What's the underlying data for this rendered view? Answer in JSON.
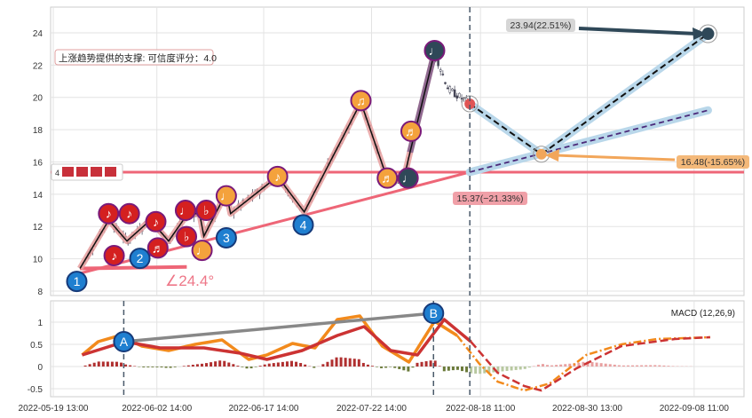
{
  "chart_data": [
    {
      "type": "line",
      "title": "",
      "panel": "price",
      "ylim": [
        7.8,
        25.6
      ],
      "xlim": [
        -0.3,
        64.7
      ],
      "yticks": [
        8,
        10,
        12,
        14,
        16,
        18,
        20,
        22,
        24
      ],
      "grid": true,
      "zigzag": [
        [
          2.5,
          9.4
        ],
        [
          5.2,
          12.4
        ],
        [
          6.9,
          11.1
        ],
        [
          9.1,
          12.4
        ],
        [
          10.8,
          11.1
        ],
        [
          12.6,
          12.8
        ],
        [
          13.7,
          12.8
        ],
        [
          14.1,
          11.4
        ],
        [
          16.2,
          14.1
        ],
        [
          16.6,
          12.8
        ],
        [
          21.0,
          15.1
        ],
        [
          23.5,
          12.9
        ],
        [
          28.8,
          19.7
        ],
        [
          31.3,
          14.9
        ],
        [
          32.8,
          14.9
        ],
        [
          33.4,
          16.6
        ],
        [
          35.7,
          22.8
        ],
        [
          37.0,
          20.5
        ],
        [
          39.0,
          19.6
        ]
      ],
      "markers": [
        {
          "label": "1",
          "u": 2.2,
          "p": 8.6,
          "color": "#1f7fd0"
        },
        {
          "label": "2",
          "u": 8.3,
          "p": 10.1,
          "color": "#1f7fd0"
        },
        {
          "label": "3",
          "u": 16.2,
          "p": 11.3,
          "color": "#1f7fd0"
        },
        {
          "label": "4",
          "u": 23.4,
          "p": 12.1,
          "color": "#1f7fd0"
        },
        {
          "label": "♪",
          "u": 5.7,
          "p": 10.2,
          "color": "#d42020"
        },
        {
          "label": "♬",
          "u": 9.6,
          "p": 10.6,
          "color": "#d42020"
        },
        {
          "label": "♪",
          "u": 5.2,
          "p": 12.8,
          "color": "#d42020"
        },
        {
          "label": "♪",
          "u": 7.1,
          "p": 12.8,
          "color": "#d42020"
        },
        {
          "label": "♪",
          "u": 9.6,
          "p": 12.3,
          "color": "#d42020"
        },
        {
          "label": "♭",
          "u": 12.6,
          "p": 11.3,
          "color": "#d42020"
        },
        {
          "label": "♩",
          "u": 12.9,
          "p": 13.0,
          "color": "#d42020"
        },
        {
          "label": "♭",
          "u": 13.8,
          "p": 13.0,
          "color": "#d42020"
        },
        {
          "label": "♩",
          "u": 13.8,
          "p": 10.6,
          "color": "#f4a23c"
        },
        {
          "label": "♩",
          "u": 16.2,
          "p": 13.9,
          "color": "#f4a23c"
        },
        {
          "label": "♪",
          "u": 21.0,
          "p": 15.1,
          "color": "#f4a23c"
        },
        {
          "label": "♫",
          "u": 28.8,
          "p": 19.8,
          "color": "#f4a23c"
        },
        {
          "label": "♬",
          "u": 31.4,
          "p": 15.0,
          "color": "#f4a23c"
        },
        {
          "label": "♬",
          "u": 33.5,
          "p": 17.9,
          "color": "#f4a23c"
        },
        {
          "label": "♩",
          "u": 33.1,
          "p": 15.0,
          "color": "#2f4858"
        },
        {
          "label": "♩",
          "u": 35.7,
          "p": 22.9,
          "color": "#2f4858"
        }
      ],
      "support_level": 15.37,
      "support_label": "15.37(−21.33%)",
      "trend_angle_label": "∠24.4°",
      "support_note": "上涨趋势提供的支撑: 可信度评分：4.0",
      "legend_count": "4",
      "current": {
        "u": 39.0,
        "p": 19.6
      },
      "prediction_low": {
        "u": 45.7,
        "p": 16.48,
        "label": "16.48(-15.65%)"
      },
      "prediction_high": {
        "u": 61.3,
        "p": 23.94,
        "label": "23.94(22.51%)"
      },
      "trend_projection_end": {
        "u": 61.3,
        "p": 19.2
      }
    },
    {
      "type": "line",
      "panel": "macd",
      "title": "MACD (12,26,9)",
      "ylim": [
        -0.65,
        1.5
      ],
      "yticks": [
        -0.5,
        0.0,
        0.5,
        1.0
      ],
      "xticks": [
        {
          "u": 0,
          "label": "2022-05-19 13:00"
        },
        {
          "u": 9.7,
          "label": "2022-06-02 14:00"
        },
        {
          "u": 19.7,
          "label": "2022-06-17 14:00"
        },
        {
          "u": 29.8,
          "label": "2022-07-22 14:00"
        },
        {
          "u": 40.0,
          "label": "2022-08-18 11:00"
        },
        {
          "u": 50.0,
          "label": "2022-08-30 13:00"
        },
        {
          "u": 60.0,
          "label": "2022-09-08 11:00"
        }
      ],
      "forecast_start_u": 39.0,
      "series": [
        {
          "name": "MACD",
          "color": "#f28a1c",
          "points": [
            [
              2.7,
              0.26
            ],
            [
              4.2,
              0.56
            ],
            [
              6.2,
              0.7
            ],
            [
              8.3,
              0.46
            ],
            [
              10.8,
              0.36
            ],
            [
              13.3,
              0.5
            ],
            [
              15.8,
              0.6
            ],
            [
              18.3,
              0.16
            ],
            [
              20.0,
              0.26
            ],
            [
              22.4,
              0.52
            ],
            [
              24.5,
              0.42
            ],
            [
              26.6,
              1.06
            ],
            [
              28.7,
              1.14
            ],
            [
              30.8,
              0.46
            ],
            [
              33.3,
              0.1
            ],
            [
              35.7,
              1.02
            ],
            [
              37.8,
              0.7
            ],
            [
              39.9,
              0.06
            ],
            [
              41.6,
              -0.34
            ],
            [
              44.1,
              -0.54
            ],
            [
              46.5,
              -0.38
            ],
            [
              49.9,
              0.26
            ],
            [
              53.2,
              0.5
            ],
            [
              56.5,
              0.62
            ],
            [
              61.5,
              0.66
            ]
          ]
        },
        {
          "name": "Signal",
          "color": "#cc3333",
          "points": [
            [
              2.7,
              0.26
            ],
            [
              6.7,
              0.56
            ],
            [
              10.0,
              0.42
            ],
            [
              14.1,
              0.42
            ],
            [
              17.5,
              0.3
            ],
            [
              20.0,
              0.16
            ],
            [
              23.3,
              0.36
            ],
            [
              26.6,
              0.7
            ],
            [
              29.1,
              0.9
            ],
            [
              31.6,
              0.36
            ],
            [
              34.1,
              0.26
            ],
            [
              36.6,
              1.06
            ],
            [
              39.1,
              0.56
            ],
            [
              41.6,
              -0.14
            ],
            [
              44.1,
              -0.44
            ],
            [
              45.7,
              -0.54
            ],
            [
              49.0,
              -0.04
            ],
            [
              53.2,
              0.46
            ],
            [
              58.2,
              0.62
            ],
            [
              61.5,
              0.66
            ]
          ]
        }
      ],
      "divergence": [
        {
          "label": "A",
          "u": 6.6,
          "m": 0.56
        },
        {
          "label": "B",
          "u": 35.6,
          "m": 1.2
        }
      ]
    }
  ]
}
